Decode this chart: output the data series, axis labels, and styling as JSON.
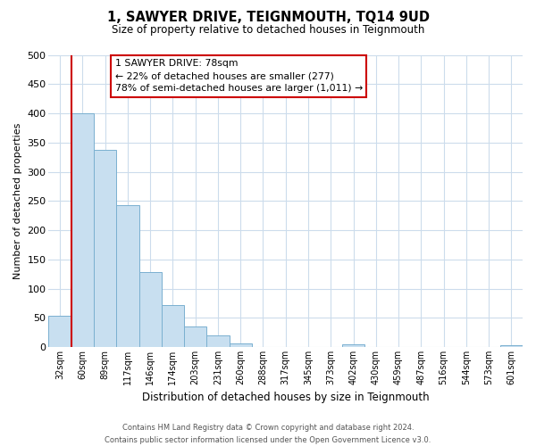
{
  "title": "1, SAWYER DRIVE, TEIGNMOUTH, TQ14 9UD",
  "subtitle": "Size of property relative to detached houses in Teignmouth",
  "xlabel": "Distribution of detached houses by size in Teignmouth",
  "ylabel": "Number of detached properties",
  "bar_labels": [
    "32sqm",
    "60sqm",
    "89sqm",
    "117sqm",
    "146sqm",
    "174sqm",
    "203sqm",
    "231sqm",
    "260sqm",
    "288sqm",
    "317sqm",
    "345sqm",
    "373sqm",
    "402sqm",
    "430sqm",
    "459sqm",
    "487sqm",
    "516sqm",
    "544sqm",
    "573sqm",
    "601sqm"
  ],
  "bar_values": [
    53,
    400,
    338,
    243,
    128,
    72,
    35,
    20,
    6,
    0,
    0,
    0,
    0,
    5,
    0,
    0,
    0,
    0,
    0,
    0,
    3
  ],
  "bar_color": "#c8dff0",
  "bar_edge_color": "#7ab0d0",
  "vline_color": "#cc0000",
  "vline_x_index": 1,
  "ylim": [
    0,
    500
  ],
  "yticks": [
    0,
    50,
    100,
    150,
    200,
    250,
    300,
    350,
    400,
    450,
    500
  ],
  "annotation_title": "1 SAWYER DRIVE: 78sqm",
  "annotation_line1": "← 22% of detached houses are smaller (277)",
  "annotation_line2": "78% of semi-detached houses are larger (1,011) →",
  "footer_line1": "Contains HM Land Registry data © Crown copyright and database right 2024.",
  "footer_line2": "Contains public sector information licensed under the Open Government Licence v3.0.",
  "background_color": "#ffffff",
  "grid_color": "#ccdcec"
}
